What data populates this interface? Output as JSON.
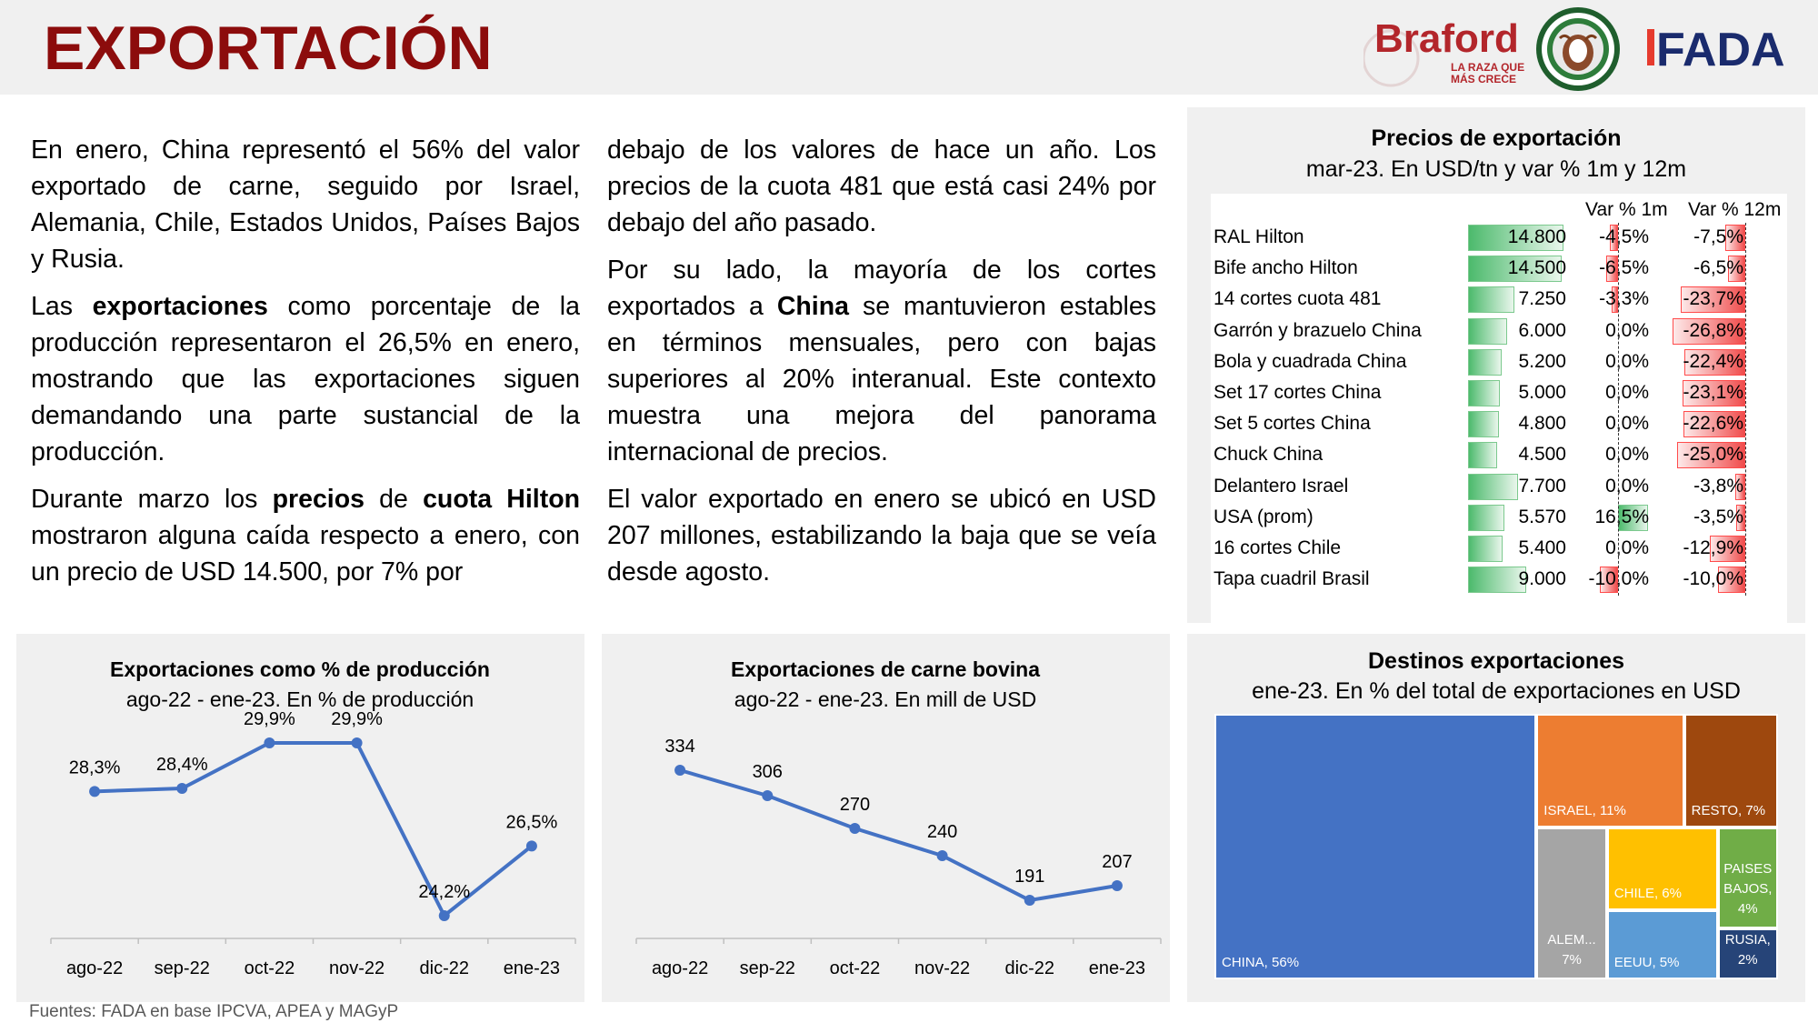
{
  "header": {
    "title": "EXPORTACIÓN",
    "logos": {
      "braford_name": "Braford",
      "braford_tagline_1": "LA RAZA QUE",
      "braford_tagline_2": "MÁS CRECE",
      "hereford": "hereford-seal",
      "fada": "FADA"
    }
  },
  "text": {
    "col1": [
      [
        {
          "t": "En enero, China representó el 56% del valor exportado de carne, seguido por Israel, Alemania, Chile, Estados Unidos, Países Bajos y Rusia."
        }
      ],
      [
        {
          "t": "Las "
        },
        {
          "t": "exportaciones",
          "b": true
        },
        {
          "t": " como porcentaje de la producción representaron el 26,5% en enero, mostrando que las exportaciones siguen demandando una parte sustancial de la producción."
        }
      ],
      [
        {
          "t": "Durante marzo los "
        },
        {
          "t": "precios",
          "b": true
        },
        {
          "t": " de "
        },
        {
          "t": "cuota Hilton",
          "b": true
        },
        {
          "t": " mostraron alguna caída respecto a enero, con un precio de USD 14.500, por 7% por"
        }
      ]
    ],
    "col2": [
      [
        {
          "t": "debajo de los valores de hace un año. Los precios de la cuota 481 que está casi 24% por debajo del año pasado."
        }
      ],
      [
        {
          "t": "Por su lado, la mayoría de los cortes exportados a "
        },
        {
          "t": "China",
          "b": true
        },
        {
          "t": " se mantuvieron estables en términos mensuales, pero con bajas superiores al 20% interanual. Este contexto muestra una mejora del panorama internacional de precios."
        }
      ],
      [
        {
          "t": "El valor exportado en enero se ubicó en USD 207 millones, estabilizando la baja que se veía desde agosto."
        }
      ]
    ]
  },
  "prices": {
    "title": "Precios de exportación",
    "subtitle": "mar-23. En USD/tn y var % 1m y 12m",
    "col_1m": "Var % 1m",
    "col_12m": "Var % 12m"
  },
  "chart_data": [
    {
      "type": "table",
      "title": "Precios de exportación",
      "subtitle": "mar-23. En USD/tn y var % 1m y 12m",
      "columns": [
        "",
        "",
        "Var % 1m",
        "Var % 12m"
      ],
      "rows": [
        {
          "name": "RAL Hilton",
          "price": 14800,
          "price_label": "14.800",
          "var1m": -4.5,
          "var1m_label": "-4,5%",
          "var12m": -7.5,
          "var12m_label": "-7,5%"
        },
        {
          "name": "Bife ancho Hilton",
          "price": 14500,
          "price_label": "14.500",
          "var1m": -6.5,
          "var1m_label": "-6,5%",
          "var12m": -6.5,
          "var12m_label": "-6,5%"
        },
        {
          "name": "14 cortes cuota 481",
          "price": 7250,
          "price_label": "7.250",
          "var1m": -3.3,
          "var1m_label": "-3,3%",
          "var12m": -23.7,
          "var12m_label": "-23,7%"
        },
        {
          "name": "Garrón y brazuelo China",
          "price": 6000,
          "price_label": "6.000",
          "var1m": 0.0,
          "var1m_label": "0,0%",
          "var12m": -26.8,
          "var12m_label": "-26,8%"
        },
        {
          "name": "Bola y cuadrada China",
          "price": 5200,
          "price_label": "5.200",
          "var1m": 0.0,
          "var1m_label": "0,0%",
          "var12m": -22.4,
          "var12m_label": "-22,4%"
        },
        {
          "name": "Set 17 cortes China",
          "price": 5000,
          "price_label": "5.000",
          "var1m": 0.0,
          "var1m_label": "0,0%",
          "var12m": -23.1,
          "var12m_label": "-23,1%"
        },
        {
          "name": "Set 5 cortes China",
          "price": 4800,
          "price_label": "4.800",
          "var1m": 0.0,
          "var1m_label": "0,0%",
          "var12m": -22.6,
          "var12m_label": "-22,6%"
        },
        {
          "name": "Chuck China",
          "price": 4500,
          "price_label": "4.500",
          "var1m": 0.0,
          "var1m_label": "0,0%",
          "var12m": -25.0,
          "var12m_label": "-25,0%"
        },
        {
          "name": "Delantero Israel",
          "price": 7700,
          "price_label": "7.700",
          "var1m": 0.0,
          "var1m_label": "0,0%",
          "var12m": -3.8,
          "var12m_label": "-3,8%"
        },
        {
          "name": "USA (prom)",
          "price": 5570,
          "price_label": "5.570",
          "var1m": 16.5,
          "var1m_label": "16,5%",
          "var12m": -3.5,
          "var12m_label": "-3,5%"
        },
        {
          "name": "16 cortes Chile",
          "price": 5400,
          "price_label": "5.400",
          "var1m": 0.0,
          "var1m_label": "0,0%",
          "var12m": -12.9,
          "var12m_label": "-12,9%"
        },
        {
          "name": "Tapa cuadril Brasil",
          "price": 9000,
          "price_label": "9.000",
          "var1m": -10.0,
          "var1m_label": "-10,0%",
          "var12m": -10.0,
          "var12m_label": "-10,0%"
        }
      ]
    },
    {
      "type": "line",
      "title": "Exportaciones como % de producción",
      "subtitle": "ago-22 - ene-23. En % de producción",
      "categories": [
        "ago-22",
        "sep-22",
        "oct-22",
        "nov-22",
        "dic-22",
        "ene-23"
      ],
      "values": [
        28.3,
        28.4,
        29.9,
        29.9,
        24.2,
        26.5
      ],
      "labels": [
        "28,3%",
        "28,4%",
        "29,9%",
        "29,9%",
        "24,2%",
        "26,5%"
      ],
      "ylim": [
        20,
        32
      ],
      "color": "#4472c4",
      "grid": false
    },
    {
      "type": "line",
      "title": "Exportaciones de carne bovina",
      "subtitle": "ago-22 - ene-23. En mill de USD",
      "categories": [
        "ago-22",
        "sep-22",
        "oct-22",
        "nov-22",
        "dic-22",
        "ene-23"
      ],
      "values": [
        334,
        306,
        270,
        240,
        191,
        207
      ],
      "labels": [
        "334",
        "306",
        "270",
        "240",
        "191",
        "207"
      ],
      "ylim": [
        0,
        400
      ],
      "color": "#4472c4",
      "grid": false
    },
    {
      "type": "treemap",
      "title": "Destinos exportaciones",
      "subtitle": "ene-23. En % del total de exportaciones en USD",
      "items": [
        {
          "name": "CHINA",
          "value": 56,
          "label": "CHINA, 56%",
          "color": "#4472c4"
        },
        {
          "name": "ISRAEL",
          "value": 11,
          "label": "ISRAEL, 11%",
          "color": "#ed7d31"
        },
        {
          "name": "RESTO",
          "value": 7,
          "label": "RESTO, 7%",
          "color": "#9e480e"
        },
        {
          "name": "ALEM...",
          "value": 7,
          "label": "ALEM... 7%",
          "color": "#a5a5a5"
        },
        {
          "name": "CHILE",
          "value": 6,
          "label": "CHILE, 6%",
          "color": "#ffc000"
        },
        {
          "name": "EEUU",
          "value": 5,
          "label": "EEUU, 5%",
          "color": "#5b9bd5"
        },
        {
          "name": "PAISES BAJOS",
          "value": 4,
          "label": "PAISES BAJOS, 4%",
          "color": "#70ad47"
        },
        {
          "name": "RUSIA",
          "value": 2,
          "label": "RUSIA, 2%",
          "color": "#264478"
        }
      ]
    }
  ],
  "source": "Fuentes: FADA en base IPCVA, APEA y MAGyP"
}
